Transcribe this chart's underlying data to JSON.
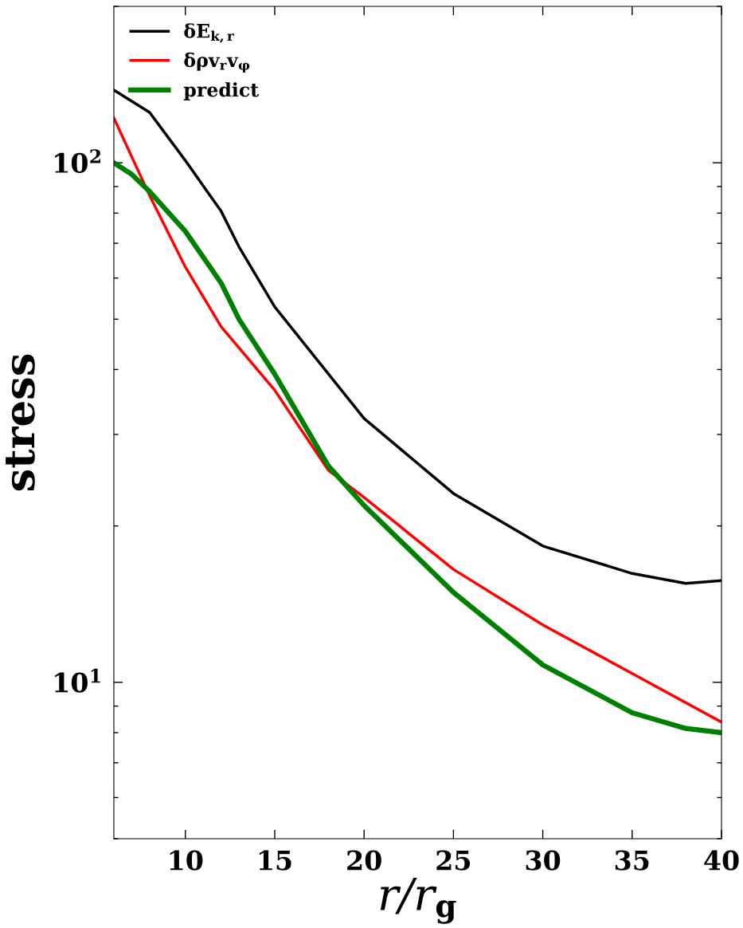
{
  "chart_data": {
    "type": "line",
    "xlabel": "r/r$_{g}$",
    "ylabel": "stress",
    "log": "y",
    "legend": "top left",
    "grid": false,
    "xlim": [
      6,
      40
    ],
    "xticks": [
      10,
      15,
      20,
      25,
      30,
      35,
      40
    ],
    "ylim": [
      5,
      200
    ],
    "yticks": [
      {
        "value": 10,
        "label": "10$^{1}$"
      },
      {
        "value": 100,
        "label": "10$^{2}$"
      }
    ],
    "series": [
      {
        "name": "δE$_{k,r}$",
        "color": "#000000",
        "x": [
          6,
          8,
          10,
          12,
          13,
          15,
          20,
          25,
          30,
          35,
          38,
          40
        ],
        "values": [
          138,
          125,
          101,
          80.7,
          68.9,
          52.8,
          32.2,
          23.1,
          18.3,
          16.2,
          15.5,
          15.7
        ]
      },
      {
        "name": "δρv$_{r}$v$_{φ}$",
        "color": "#ff0000",
        "x": [
          6,
          8,
          10,
          12,
          15,
          18,
          20,
          25,
          30,
          35,
          40
        ],
        "values": [
          122,
          86.5,
          63,
          48.4,
          36.5,
          25.6,
          22.7,
          16.5,
          12.9,
          10.4,
          8.38
        ]
      },
      {
        "name": "predict",
        "color": "#008000",
        "x": [
          6,
          7,
          8,
          10,
          12,
          13,
          15,
          18,
          20,
          25,
          30,
          35,
          38,
          40
        ],
        "values": [
          100,
          95,
          88,
          73.8,
          58.7,
          50,
          39.2,
          26.1,
          21.9,
          14.9,
          10.8,
          8.74,
          8.15,
          8.0
        ]
      }
    ]
  }
}
